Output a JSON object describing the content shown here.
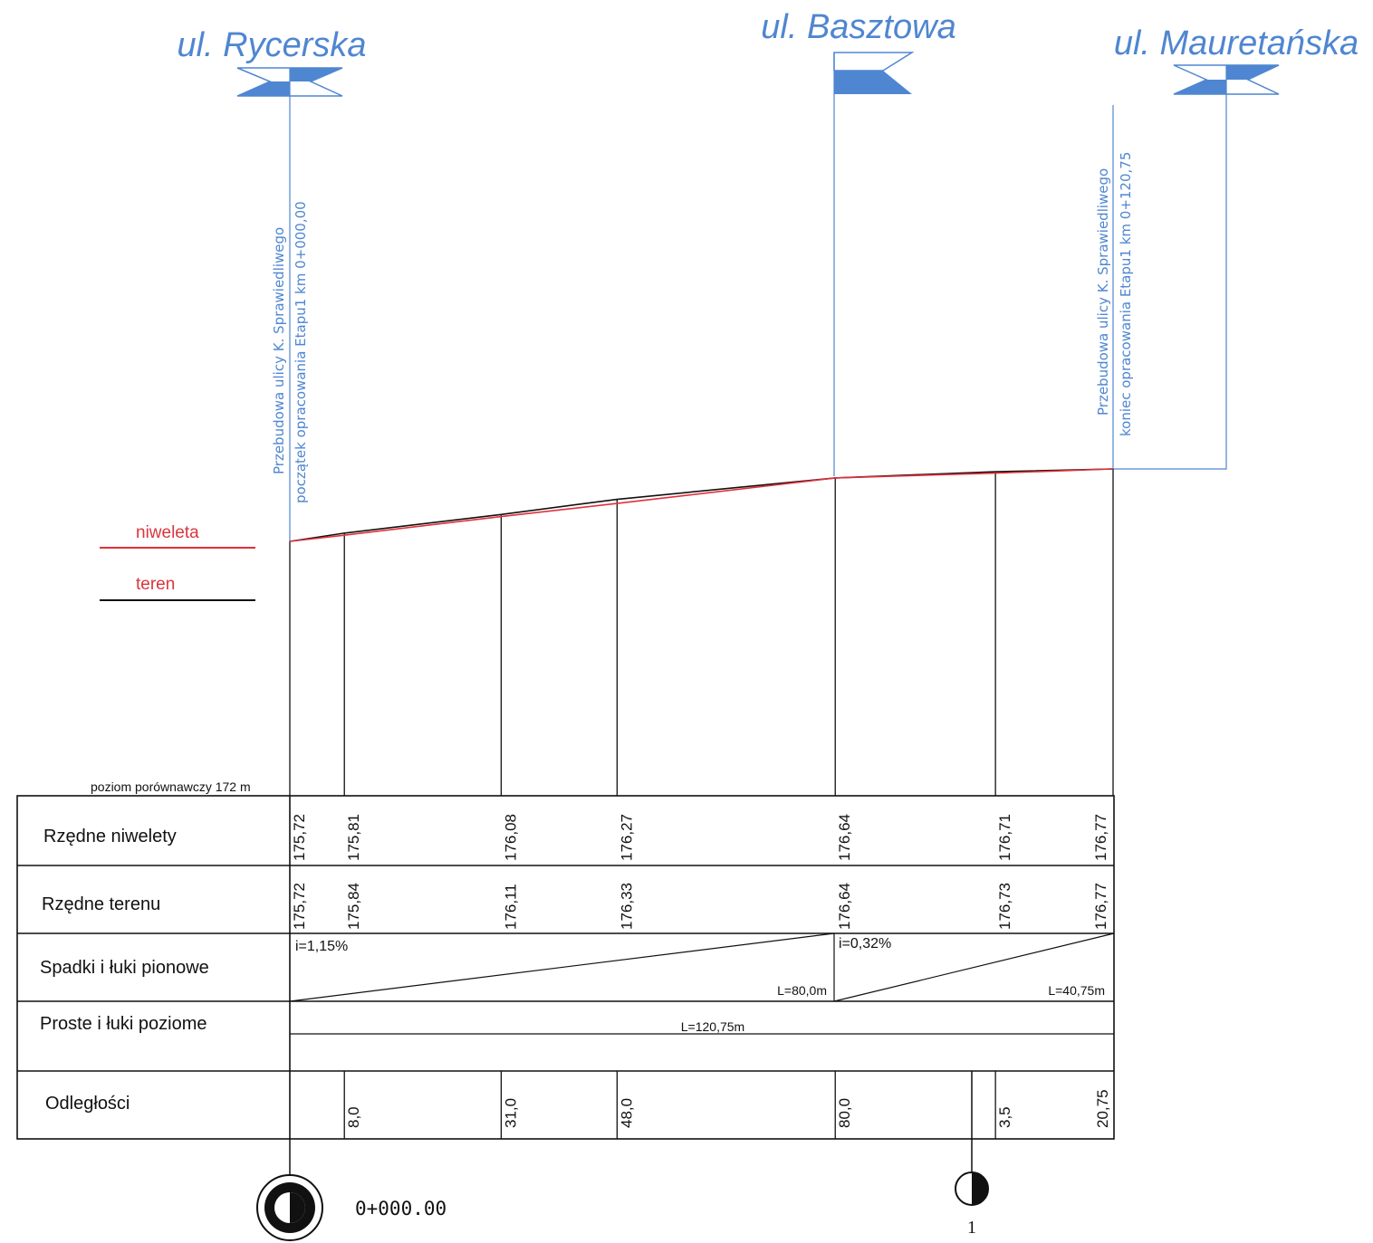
{
  "streets": {
    "left": "ul. Rycerska",
    "middle": "ul. Basztowa",
    "right": "ul. Mauretańska"
  },
  "annotations": {
    "start_line1": "Przebudowa ulicy K. Sprawiedliwego",
    "start_line2": "początek opracowania Etapu1 km 0+000,00",
    "end_line1": "Przebudowa ulicy K. Sprawiedliwego",
    "end_line2": "koniec opracowania Etapu1 km 0+120,75"
  },
  "legend": {
    "niweleta": "niweleta",
    "teren": "teren",
    "niweleta_color": "#e0303a",
    "teren_color": "#111111"
  },
  "reference_level": "poziom porównawczy 172 m",
  "rows": {
    "niweleta": "Rzędne niwelety",
    "teren": "Rzędne terenu",
    "spadki": "Spadki i łuki pionowe",
    "proste": "Proste i łuki poziome",
    "odleglosci": "Odległości"
  },
  "chart_data": {
    "type": "line",
    "x_unit": "m",
    "base_level": 172,
    "stations": [
      0,
      8.0,
      31.0,
      48.0,
      80.0,
      103.5,
      120.75
    ],
    "series": [
      {
        "name": "niweleta",
        "color": "#e0303a",
        "values": [
          175.72,
          175.81,
          176.08,
          176.27,
          176.64,
          176.71,
          176.77
        ]
      },
      {
        "name": "teren",
        "color": "#111111",
        "values": [
          175.72,
          175.84,
          176.11,
          176.33,
          176.64,
          176.73,
          176.77
        ]
      }
    ]
  },
  "elevations_niweleta": [
    "175,72",
    "175,81",
    "176,08",
    "176,27",
    "176,64",
    "176,71",
    "176,77"
  ],
  "elevations_teren": [
    "175,72",
    "175,84",
    "176,11",
    "176,33",
    "176,64",
    "176,73",
    "176,77"
  ],
  "gradients": [
    {
      "label": "i=1,15%",
      "length": "L=80,0m"
    },
    {
      "label": "i=0,32%",
      "length": "L=40,75m"
    }
  ],
  "horizontal": {
    "length": "L=120,75m"
  },
  "distances": [
    "8,0",
    "31,0",
    "48,0",
    "80,0",
    "3,5",
    "20,75"
  ],
  "cross_sections": {
    "start_km": "0+000.00",
    "section_number": "1"
  }
}
